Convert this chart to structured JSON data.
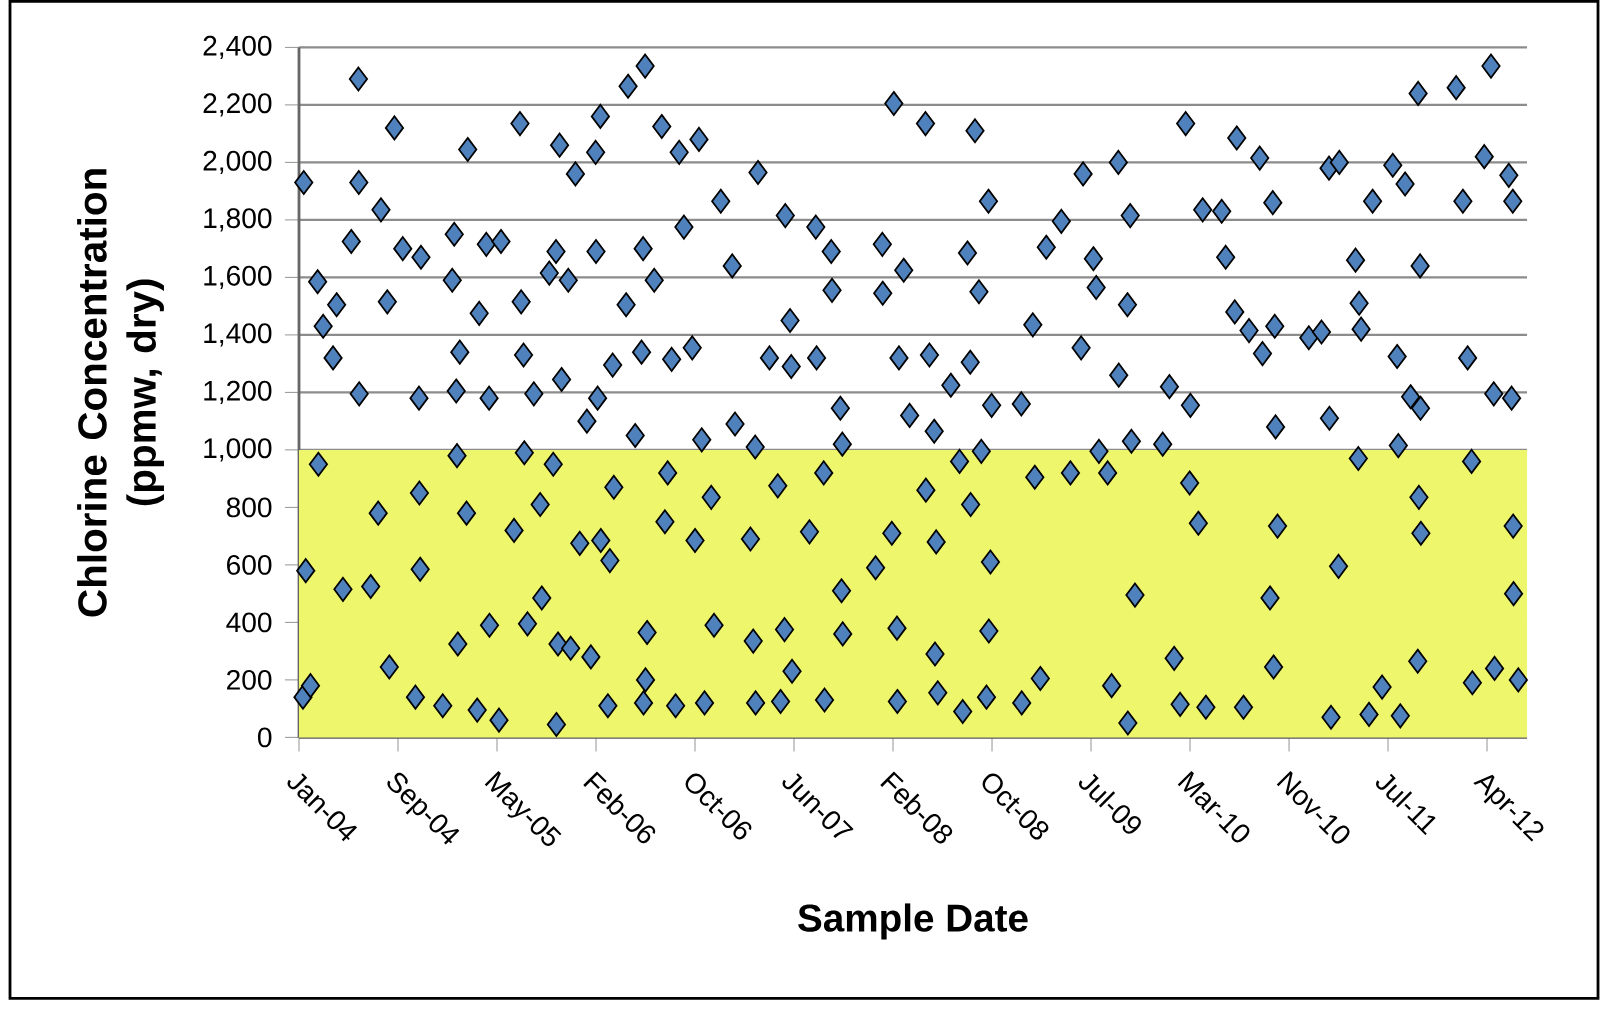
{
  "chart_data": {
    "type": "scatter",
    "xlabel": "Sample Date",
    "ylabel": "Chlorine Concentration (ppmw, dry)",
    "color": "#4f81bd",
    "marker": "diamond",
    "grid": "y",
    "xlim": [
      "2004-01-15",
      "2012-07-12"
    ],
    "ylim": [
      0,
      2400
    ],
    "xticks": [
      {
        "value": "2004-01-15",
        "label": "Jan-04"
      },
      {
        "value": "2004-09-21",
        "label": "Sep-04"
      },
      {
        "value": "2005-05-29",
        "label": "May-05"
      },
      {
        "value": "2006-02-03",
        "label": "Feb-06"
      },
      {
        "value": "2006-10-11",
        "label": "Oct-06"
      },
      {
        "value": "2007-06-18",
        "label": "Jun-07"
      },
      {
        "value": "2008-02-23",
        "label": "Feb-08"
      },
      {
        "value": "2008-10-30",
        "label": "Oct-08"
      },
      {
        "value": "2009-07-07",
        "label": "Jul-09"
      },
      {
        "value": "2010-03-14",
        "label": "Mar-10"
      },
      {
        "value": "2010-11-19",
        "label": "Nov-10"
      },
      {
        "value": "2011-07-27",
        "label": "Jul-11"
      },
      {
        "value": "2012-04-02",
        "label": "Apr-12"
      }
    ],
    "yticks": [
      {
        "value": 0,
        "label": "0"
      },
      {
        "value": 200,
        "label": "200"
      },
      {
        "value": 400,
        "label": "400"
      },
      {
        "value": 600,
        "label": "600"
      },
      {
        "value": 800,
        "label": "800"
      },
      {
        "value": 1000,
        "label": "1,000"
      },
      {
        "value": 1200,
        "label": "1,200"
      },
      {
        "value": 1400,
        "label": "1,400"
      },
      {
        "value": 1600,
        "label": "1,600"
      },
      {
        "value": 1800,
        "label": "1,800"
      },
      {
        "value": 2000,
        "label": "2,000"
      },
      {
        "value": 2200,
        "label": "2,200"
      },
      {
        "value": 2400,
        "label": "2,400"
      }
    ],
    "bands": [
      {
        "axis": "y",
        "from": 0,
        "to": 1000,
        "color": "#eef66c"
      }
    ],
    "x": [
      "2004-01-27",
      "2004-02-01",
      "2004-01-25",
      "2004-02-13",
      "2004-03-02",
      "2004-03-16",
      "2004-03-04",
      "2004-04-10",
      "2004-04-19",
      "2004-05-05",
      "2004-05-26",
      "2004-06-13",
      "2004-06-14",
      "2004-06-15",
      "2004-07-14",
      "2004-08-02",
      "2004-08-09",
      "2004-08-25",
      "2004-09-12",
      "2004-08-30",
      "2004-10-03",
      "2004-11-18",
      "2004-11-13",
      "2004-11-14",
      "2004-11-16",
      "2004-11-04",
      "2005-01-12",
      "2005-02-10",
      "2005-02-05",
      "2005-02-17",
      "2005-02-19",
      "2005-03-16",
      "2005-02-24",
      "2005-02-15",
      "2005-03-13",
      "2005-05-02",
      "2005-06-08",
      "2005-04-14",
      "2005-05-09",
      "2005-05-10",
      "2005-06-03",
      "2005-04-09",
      "2005-07-11",
      "2005-07-26",
      "2005-07-29",
      "2005-08-04",
      "2005-08-06",
      "2005-08-14",
      "2005-08-30",
      "2005-09-15",
      "2005-09-19",
      "2005-10-08",
      "2005-10-18",
      "2005-10-30",
      "2005-11-03",
      "2005-10-25",
      "2005-11-08",
      "2005-10-26",
      "2005-12-13",
      "2005-11-25",
      "2005-12-01",
      "2005-12-24",
      "2006-01-11",
      "2006-01-21",
      "2006-02-14",
      "2006-02-02",
      "2006-02-03",
      "2006-02-07",
      "2006-02-15",
      "2006-03-05",
      "2006-03-20",
      "2006-03-10",
      "2006-03-17",
      "2006-04-25",
      "2006-04-20",
      "2006-05-13",
      "2006-06-07",
      "2006-06-02",
      "2006-05-29",
      "2006-06-12",
      "2006-06-08",
      "2006-06-03",
      "2006-07-19",
      "2006-06-30",
      "2006-07-27",
      "2006-08-03",
      "2006-08-13",
      "2006-08-23",
      "2006-09-01",
      "2006-09-13",
      "2006-10-04",
      "2006-10-11",
      "2006-10-21",
      "2006-10-28",
      "2006-11-04",
      "2006-11-21",
      "2006-11-28",
      "2006-12-15",
      "2007-01-13",
      "2007-01-20",
      "2007-03-19",
      "2007-03-12",
      "2007-02-28",
      "2007-03-07",
      "2007-03-13",
      "2007-04-17",
      "2007-05-08",
      "2007-05-27",
      "2007-06-08",
      "2007-06-11",
      "2007-05-25",
      "2007-05-15",
      "2007-06-13",
      "2007-07-27",
      "2007-08-12",
      "2007-08-14",
      "2007-09-01",
      "2007-09-03",
      "2007-09-20",
      "2007-09-22",
      "2007-10-13",
      "2007-10-18",
      "2007-10-19",
      "2007-10-16",
      "2008-01-10",
      "2008-01-27",
      "2008-01-28",
      "2008-02-25",
      "2008-02-20",
      "2008-03-09",
      "2008-03-04",
      "2008-03-05",
      "2008-03-21",
      "2008-04-05",
      "2008-05-15",
      "2008-05-16",
      "2008-05-25",
      "2008-06-06",
      "2008-06-11",
      "2008-06-08",
      "2008-06-15",
      "2008-07-18",
      "2008-08-09",
      "2008-08-17",
      "2008-08-29",
      "2008-09-17",
      "2008-09-05",
      "2008-09-06",
      "2008-09-27",
      "2008-10-03",
      "2008-10-21",
      "2008-10-29",
      "2008-10-26",
      "2008-10-22",
      "2008-10-16",
      "2009-01-12",
      "2009-01-13",
      "2009-02-10",
      "2009-02-15",
      "2009-03-01",
      "2009-03-16",
      "2009-04-23",
      "2009-05-16",
      "2009-06-17",
      "2009-06-12",
      "2009-07-13",
      "2009-07-20",
      "2009-07-27",
      "2009-08-18",
      "2009-08-28",
      "2009-09-14",
      "2009-09-15",
      "2009-10-07",
      "2009-10-14",
      "2009-10-17",
      "2009-10-08",
      "2009-10-26",
      "2010-01-04",
      "2010-01-21",
      "2010-02-02",
      "2010-02-17",
      "2010-03-03",
      "2010-03-15",
      "2010-03-13",
      "2010-04-04",
      "2010-04-15",
      "2010-04-23",
      "2010-06-02",
      "2010-06-12",
      "2010-07-10",
      "2010-07-05",
      "2010-07-27",
      "2010-08-10",
      "2010-09-06",
      "2010-09-13",
      "2010-10-09",
      "2010-10-14",
      "2010-10-16",
      "2010-10-11",
      "2010-10-02",
      "2010-10-21",
      "2011-01-08",
      "2011-02-09",
      "2011-02-28",
      "2011-03-26",
      "2011-03-01",
      "2011-03-05",
      "2011-03-24",
      "2011-05-15",
      "2011-05-06",
      "2011-05-20",
      "2011-05-13",
      "2011-06-09",
      "2011-06-18",
      "2011-07-12",
      "2011-08-08",
      "2011-08-19",
      "2011-08-22",
      "2011-09-08",
      "2011-08-27",
      "2011-09-22",
      "2011-10-11",
      "2011-10-16",
      "2011-10-17",
      "2011-10-13",
      "2011-10-18",
      "2011-10-10",
      "2012-01-15",
      "2012-02-01",
      "2012-02-13",
      "2012-02-23",
      "2012-02-25",
      "2012-04-12",
      "2012-03-26",
      "2012-04-19",
      "2012-05-27",
      "2012-06-06",
      "2012-06-03",
      "2012-06-07",
      "2012-06-08",
      "2012-06-20",
      "2012-04-21"
    ],
    "values": [
      1930,
      580,
      140,
      180,
      1585,
      1430,
      950,
      1320,
      1505,
      515,
      1725,
      2290,
      1930,
      1195,
      525,
      780,
      1835,
      1515,
      2120,
      245,
      1700,
      1670,
      1180,
      850,
      585,
      140,
      110,
      1750,
      1590,
      980,
      325,
      2045,
      1340,
      1205,
      780,
      1715,
      1725,
      1475,
      1180,
      390,
      60,
      95,
      720,
      2135,
      1515,
      1330,
      990,
      395,
      1195,
      810,
      485,
      1615,
      950,
      325,
      2060,
      1690,
      1245,
      45,
      1960,
      1590,
      310,
      675,
      1100,
      280,
      2160,
      2035,
      1690,
      1180,
      685,
      110,
      870,
      615,
      1295,
      2265,
      1505,
      1050,
      2335,
      1700,
      1340,
      365,
      200,
      120,
      2125,
      1590,
      750,
      920,
      1315,
      110,
      2035,
      1775,
      1355,
      685,
      2080,
      1035,
      120,
      835,
      390,
      1865,
      1640,
      1090,
      1965,
      1010,
      690,
      335,
      120,
      1320,
      875,
      1815,
      1450,
      1290,
      375,
      125,
      230,
      715,
      1775,
      1320,
      920,
      130,
      1690,
      1555,
      1145,
      1020,
      360,
      510,
      590,
      1715,
      1545,
      2205,
      710,
      1320,
      380,
      125,
      1625,
      1120,
      2135,
      860,
      1330,
      1065,
      680,
      290,
      155,
      1225,
      960,
      90,
      1685,
      2110,
      1305,
      810,
      1550,
      995,
      1865,
      1155,
      610,
      370,
      140,
      1160,
      120,
      1435,
      905,
      205,
      1705,
      1795,
      920,
      1960,
      1355,
      1665,
      1565,
      995,
      920,
      180,
      2000,
      1260,
      1505,
      1815,
      1030,
      50,
      495,
      1020,
      1220,
      275,
      115,
      2135,
      1155,
      885,
      745,
      1835,
      105,
      1830,
      1670,
      2085,
      1480,
      105,
      1415,
      2015,
      1335,
      1860,
      1430,
      1080,
      245,
      485,
      735,
      1390,
      1410,
      1980,
      2000,
      1110,
      70,
      595,
      1510,
      1660,
      1420,
      970,
      80,
      1865,
      175,
      1990,
      1325,
      1015,
      1925,
      75,
      1185,
      2240,
      1640,
      1145,
      835,
      710,
      265,
      2260,
      1865,
      1320,
      960,
      190,
      2335,
      2020,
      1195,
      1955,
      1865,
      1180,
      735,
      500,
      200,
      240
    ]
  }
}
